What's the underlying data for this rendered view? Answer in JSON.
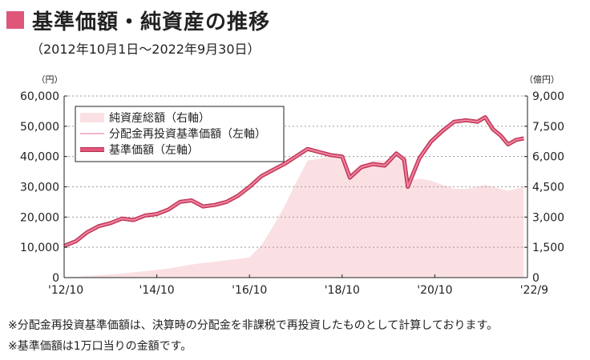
{
  "header": {
    "title": "基準価額・純資産の推移",
    "period": "（2012年10月1日〜2022年9月30日）"
  },
  "notes": {
    "note1": "※分配金再投資基準価額は、決算時の分配金を非課税で再投資したものとして計算しております。",
    "note2": "※基準価額は1万口当りの金額です。"
  },
  "colors": {
    "title_square": "#e0557a",
    "nav_line": "#e0557a",
    "nav_line_outline": "#b8304f",
    "reinvested_line": "#f0a0b4",
    "net_assets_fill": "#fbe0e3"
  },
  "chart_data": {
    "type": "line",
    "y_left_unit": "（円）",
    "y_right_unit": "（億円）",
    "ylim_left": [
      0,
      60000
    ],
    "ylim_right": [
      0,
      9000
    ],
    "y_left_ticks": [
      "0",
      "10,000",
      "20,000",
      "30,000",
      "40,000",
      "50,000",
      "60,000"
    ],
    "y_right_ticks": [
      "0",
      "1,500",
      "3,000",
      "4,500",
      "6,000",
      "7,500",
      "9,000"
    ],
    "x_ticks": [
      "'12/10",
      "'14/10",
      "'16/10",
      "'18/10",
      "'20/10",
      "'22/9"
    ],
    "legend": [
      "純資産総額（右軸）",
      "分配金再投資基準価額（左軸）",
      "基準価額（左軸）"
    ],
    "x_dates": [
      "2012-10",
      "2013-01",
      "2013-04",
      "2013-07",
      "2013-10",
      "2014-01",
      "2014-04",
      "2014-07",
      "2014-10",
      "2015-01",
      "2015-04",
      "2015-07",
      "2015-10",
      "2016-01",
      "2016-04",
      "2016-07",
      "2016-10",
      "2017-01",
      "2017-04",
      "2017-07",
      "2017-10",
      "2018-01",
      "2018-04",
      "2018-07",
      "2018-10",
      "2018-12",
      "2019-03",
      "2019-06",
      "2019-09",
      "2019-12",
      "2020-02",
      "2020-03",
      "2020-06",
      "2020-09",
      "2020-12",
      "2021-03",
      "2021-06",
      "2021-09",
      "2021-11",
      "2022-01",
      "2022-03",
      "2022-05",
      "2022-07",
      "2022-09"
    ],
    "series": [
      {
        "name": "基準価額（左軸）",
        "axis": "left",
        "values": [
          10500,
          12000,
          15000,
          17000,
          18000,
          19500,
          19000,
          20500,
          21000,
          22500,
          25000,
          25500,
          23500,
          24000,
          25000,
          27000,
          30000,
          33500,
          35500,
          37500,
          40000,
          42500,
          41500,
          40500,
          40000,
          33000,
          36500,
          37500,
          37000,
          41000,
          39000,
          30000,
          39500,
          45000,
          48500,
          51500,
          52000,
          51500,
          53000,
          49000,
          47000,
          44000,
          45500,
          46000
        ]
      },
      {
        "name": "分配金再投資基準価額（左軸）",
        "axis": "left",
        "values": [
          10500,
          12000,
          15000,
          17000,
          18000,
          19500,
          19000,
          20500,
          21000,
          22500,
          25000,
          25500,
          23500,
          24000,
          25000,
          27000,
          30000,
          33500,
          35500,
          37500,
          40000,
          42500,
          41500,
          40500,
          40000,
          33000,
          36500,
          37500,
          37000,
          41000,
          39000,
          30000,
          39500,
          45000,
          48500,
          51500,
          52000,
          51500,
          53000,
          49000,
          47000,
          44000,
          45500,
          46000
        ]
      },
      {
        "name": "純資産総額（右軸）",
        "axis": "right",
        "values": [
          20,
          40,
          80,
          120,
          160,
          200,
          260,
          320,
          380,
          450,
          550,
          650,
          720,
          780,
          860,
          920,
          1000,
          1600,
          2500,
          3500,
          4700,
          5800,
          5900,
          6000,
          6000,
          5200,
          5600,
          5800,
          5800,
          5900,
          5800,
          4800,
          4900,
          4800,
          4600,
          4400,
          4400,
          4500,
          4600,
          4500,
          4400,
          4300,
          4400,
          4500
        ]
      }
    ]
  }
}
